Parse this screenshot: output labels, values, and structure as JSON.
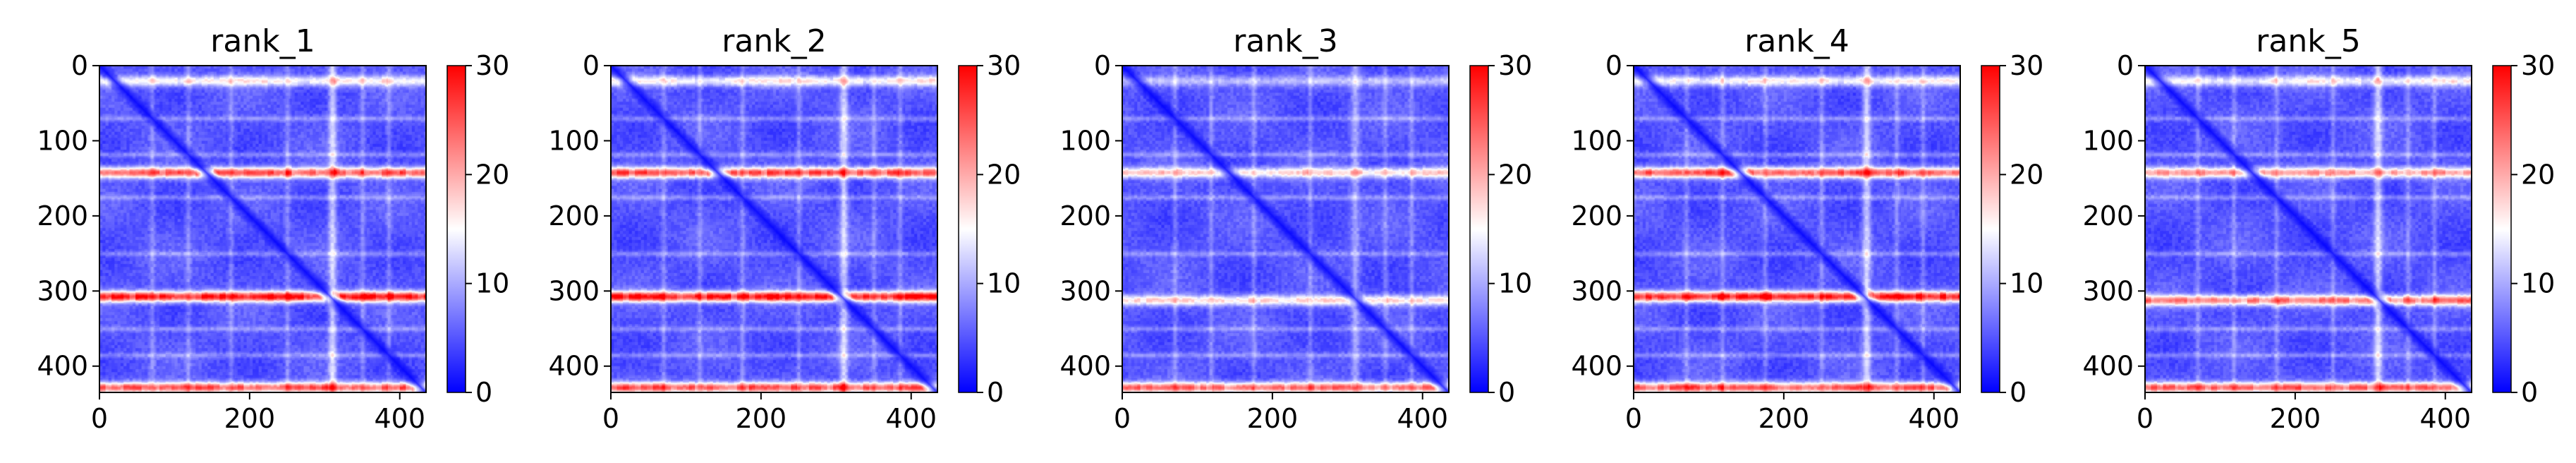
{
  "chart_data": [
    {
      "type": "heatmap",
      "title": "rank_1",
      "x_ticks": [
        "0",
        "200",
        "400"
      ],
      "y_ticks": [
        "0",
        "100",
        "200",
        "300",
        "400"
      ],
      "xlim": [
        0,
        435
      ],
      "ylim": [
        435,
        0
      ],
      "colorbar": {
        "ticks": [
          "0",
          "10",
          "20",
          "30"
        ],
        "range": [
          0,
          30
        ]
      },
      "colormap": [
        "#0000ff",
        "#ffffff",
        "#ff0000"
      ],
      "high_rows": [
        20,
        142,
        307,
        428
      ],
      "high_cols": [
        310
      ],
      "row_strength": [
        0.45,
        0.85,
        1.0,
        0.85
      ],
      "col_strength": 0.55,
      "background_value": 5,
      "peak_value": 28
    },
    {
      "type": "heatmap",
      "title": "rank_2",
      "x_ticks": [
        "0",
        "200",
        "400"
      ],
      "y_ticks": [
        "0",
        "100",
        "200",
        "300",
        "400"
      ],
      "xlim": [
        0,
        435
      ],
      "ylim": [
        435,
        0
      ],
      "colorbar": {
        "ticks": [
          "0",
          "10",
          "20",
          "30"
        ],
        "range": [
          0,
          30
        ]
      },
      "colormap": [
        "#0000ff",
        "#ffffff",
        "#ff0000"
      ],
      "high_rows": [
        20,
        142,
        307,
        428
      ],
      "high_cols": [
        310
      ],
      "row_strength": [
        0.45,
        0.85,
        1.0,
        0.85
      ],
      "col_strength": 0.55,
      "background_value": 5,
      "peak_value": 28
    },
    {
      "type": "heatmap",
      "title": "rank_3",
      "x_ticks": [
        "0",
        "200",
        "400"
      ],
      "y_ticks": [
        "0",
        "100",
        "200",
        "300",
        "400"
      ],
      "xlim": [
        0,
        435
      ],
      "ylim": [
        435,
        0
      ],
      "colorbar": {
        "ticks": [
          "0",
          "10",
          "20",
          "30"
        ],
        "range": [
          0,
          30
        ]
      },
      "colormap": [
        "#0000ff",
        "#ffffff",
        "#ff0000"
      ],
      "high_rows": [
        20,
        142,
        312,
        428
      ],
      "high_cols": [
        310
      ],
      "row_strength": [
        0.3,
        0.6,
        0.55,
        0.85
      ],
      "col_strength": 0.35,
      "background_value": 5,
      "peak_value": 26
    },
    {
      "type": "heatmap",
      "title": "rank_4",
      "x_ticks": [
        "0",
        "200",
        "400"
      ],
      "y_ticks": [
        "0",
        "100",
        "200",
        "300",
        "400"
      ],
      "xlim": [
        0,
        435
      ],
      "ylim": [
        435,
        0
      ],
      "colorbar": {
        "ticks": [
          "0",
          "10",
          "20",
          "30"
        ],
        "range": [
          0,
          30
        ]
      },
      "colormap": [
        "#0000ff",
        "#ffffff",
        "#ff0000"
      ],
      "high_rows": [
        20,
        142,
        307,
        428
      ],
      "high_cols": [
        310
      ],
      "row_strength": [
        0.45,
        0.85,
        1.0,
        0.85
      ],
      "col_strength": 0.55,
      "background_value": 5,
      "peak_value": 28
    },
    {
      "type": "heatmap",
      "title": "rank_5",
      "x_ticks": [
        "0",
        "200",
        "400"
      ],
      "y_ticks": [
        "0",
        "100",
        "200",
        "300",
        "400"
      ],
      "xlim": [
        0,
        435
      ],
      "ylim": [
        435,
        0
      ],
      "colorbar": {
        "ticks": [
          "0",
          "10",
          "20",
          "30"
        ],
        "range": [
          0,
          30
        ]
      },
      "colormap": [
        "#0000ff",
        "#ffffff",
        "#ff0000"
      ],
      "high_rows": [
        20,
        142,
        312,
        428
      ],
      "high_cols": [
        310
      ],
      "row_strength": [
        0.45,
        0.7,
        0.8,
        0.85
      ],
      "col_strength": 0.55,
      "background_value": 5,
      "peak_value": 27
    }
  ]
}
